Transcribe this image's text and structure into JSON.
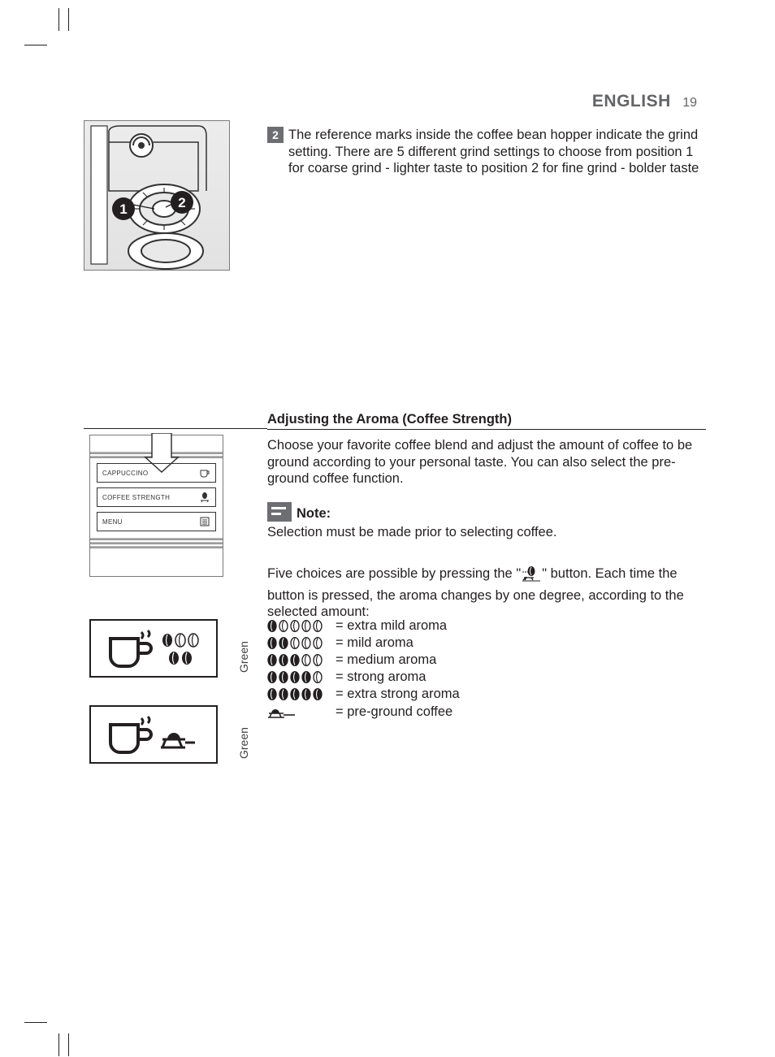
{
  "header": {
    "language": "ENGLISH",
    "page_number": "19"
  },
  "step": {
    "number": "2",
    "text_line1": "The reference marks inside the coffee bean hopper indicate the grind",
    "text_line2": "setting. There are 5 different grind settings to choose from position 1",
    "text_line3": "for coarse grind - lighter taste to position 2 for fine grind - bolder taste"
  },
  "section_heading": "Adjusting the Aroma (Coffee Strength)",
  "para_intro": "Choose your favorite coffee blend and adjust the amount of coffee to be ground according to your personal taste. You can also select the pre-ground coffee function.",
  "note": {
    "label": "Note:",
    "body": "Selection must be made prior to selecting coffee."
  },
  "para_choices_a": "Five choices are possible by pressing the \"",
  "para_choices_b": "\" button. Each time the button is pressed, the aroma changes by one degree, according to the selected amount:",
  "aroma_levels": [
    {
      "filled": 1,
      "label": "= extra mild aroma"
    },
    {
      "filled": 2,
      "label": "= mild aroma"
    },
    {
      "filled": 3,
      "label": "= medium aroma"
    },
    {
      "filled": 4,
      "label": "= strong aroma"
    },
    {
      "filled": 5,
      "label": "= extra strong aroma"
    }
  ],
  "preground_label": "= pre-ground coffee",
  "panel_buttons": {
    "b1": "CAPPUCCINO",
    "b2": "COFFEE STRENGTH",
    "b3": "MENU"
  },
  "side_labels": {
    "a": "Green",
    "b": "Green"
  },
  "colors": {
    "text": "#231f20",
    "muted": "#636466",
    "badge_bg": "#6d6e71",
    "fig_border": "#7b7b7b",
    "fig_bg_top": "#ececec",
    "fig_bg_bot": "#e2e2e2"
  },
  "figure_markers": {
    "m1": "1",
    "m2": "2"
  }
}
